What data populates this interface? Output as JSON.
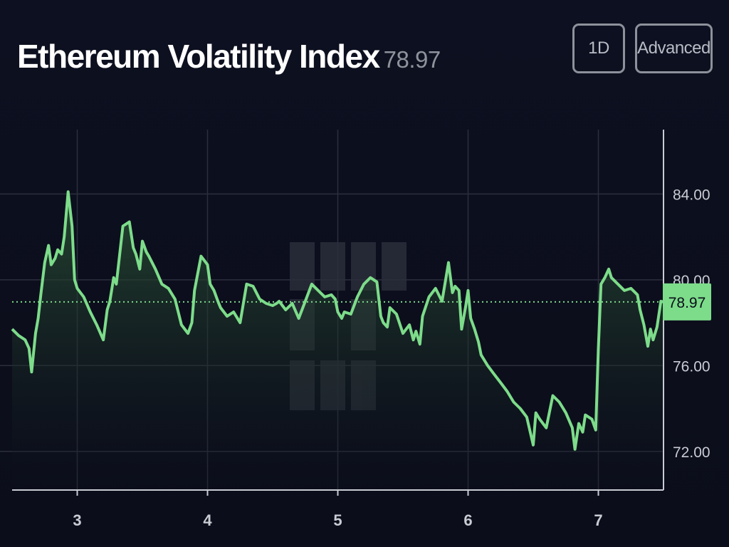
{
  "header": {
    "title": "Ethereum Volatility Index",
    "current_value": "78.97"
  },
  "toolbar": {
    "range_label": "1D",
    "advanced_label": "Advanced"
  },
  "colors": {
    "line": "#7ddc8a",
    "price_tag_bg": "#7ddc8a",
    "price_tag_text": "#0b0d1a",
    "grid": "#2b2f3c",
    "axis": "#c9ccd3"
  },
  "chart_data": {
    "type": "line",
    "x_ticks": [
      3,
      4,
      5,
      6,
      7
    ],
    "y_ticks": [
      "72.00",
      "76.00",
      "80.00",
      "84.00"
    ],
    "xlim": [
      2.5,
      7.5
    ],
    "ylim": [
      70.2,
      87.0
    ],
    "last_value": 78.97,
    "last_value_label": "78.97",
    "x": [
      2.5,
      2.55,
      2.6,
      2.63,
      2.65,
      2.68,
      2.7,
      2.72,
      2.75,
      2.78,
      2.8,
      2.83,
      2.85,
      2.88,
      2.9,
      2.93,
      2.96,
      2.98,
      3.0,
      3.05,
      3.1,
      3.15,
      3.2,
      3.23,
      3.25,
      3.28,
      3.3,
      3.35,
      3.4,
      3.43,
      3.45,
      3.48,
      3.5,
      3.53,
      3.55,
      3.6,
      3.65,
      3.7,
      3.75,
      3.8,
      3.85,
      3.88,
      3.9,
      3.95,
      4.0,
      4.02,
      4.05,
      4.08,
      4.1,
      4.15,
      4.2,
      4.25,
      4.3,
      4.35,
      4.4,
      4.45,
      4.5,
      4.53,
      4.55,
      4.6,
      4.65,
      4.7,
      4.75,
      4.8,
      4.85,
      4.9,
      4.95,
      4.98,
      5.0,
      5.03,
      5.05,
      5.1,
      5.15,
      5.2,
      5.25,
      5.3,
      5.33,
      5.35,
      5.38,
      5.4,
      5.45,
      5.5,
      5.55,
      5.58,
      5.6,
      5.63,
      5.65,
      5.7,
      5.75,
      5.8,
      5.85,
      5.88,
      5.9,
      5.93,
      5.95,
      5.98,
      6.0,
      6.02,
      6.05,
      6.08,
      6.1,
      6.15,
      6.2,
      6.25,
      6.3,
      6.35,
      6.4,
      6.45,
      6.5,
      6.52,
      6.55,
      6.6,
      6.65,
      6.7,
      6.75,
      6.8,
      6.82,
      6.85,
      6.88,
      6.9,
      6.95,
      6.98,
      7.0,
      7.02,
      7.05,
      7.08,
      7.1,
      7.15,
      7.2,
      7.25,
      7.3,
      7.32,
      7.35,
      7.38,
      7.4,
      7.42,
      7.45,
      7.48,
      7.5
    ],
    "y": [
      77.7,
      77.4,
      77.2,
      76.8,
      75.7,
      77.5,
      78.2,
      79.3,
      80.8,
      81.6,
      80.7,
      81.0,
      81.4,
      81.2,
      82.0,
      84.1,
      82.5,
      80.0,
      79.6,
      79.2,
      78.5,
      77.9,
      77.2,
      78.6,
      79.0,
      80.1,
      79.8,
      82.5,
      82.7,
      81.5,
      81.2,
      80.5,
      81.8,
      81.3,
      81.1,
      80.5,
      79.8,
      79.6,
      79.1,
      77.9,
      77.5,
      78.0,
      79.5,
      81.1,
      80.7,
      79.8,
      79.5,
      79.0,
      78.7,
      78.3,
      78.5,
      78.0,
      79.8,
      79.7,
      79.1,
      78.9,
      78.8,
      78.9,
      79.0,
      78.6,
      78.9,
      78.2,
      79.0,
      79.8,
      79.5,
      79.2,
      79.3,
      79.1,
      78.5,
      78.2,
      78.5,
      78.4,
      79.2,
      79.8,
      80.1,
      79.9,
      78.3,
      78.0,
      77.8,
      78.7,
      78.4,
      77.5,
      77.9,
      77.2,
      77.6,
      77.0,
      78.3,
      79.2,
      79.6,
      79.0,
      80.8,
      79.4,
      79.7,
      79.5,
      77.7,
      78.7,
      79.5,
      78.2,
      77.7,
      77.1,
      76.5,
      76.0,
      75.6,
      75.2,
      74.8,
      74.3,
      74.0,
      73.6,
      72.3,
      73.8,
      73.5,
      73.1,
      74.6,
      74.3,
      73.8,
      73.1,
      72.1,
      73.3,
      72.9,
      73.7,
      73.5,
      73.0,
      76.8,
      79.8,
      80.1,
      80.5,
      80.1,
      79.8,
      79.5,
      79.6,
      79.3,
      78.6,
      77.9,
      76.9,
      77.7,
      77.2,
      77.8,
      79.0,
      78.97
    ]
  }
}
